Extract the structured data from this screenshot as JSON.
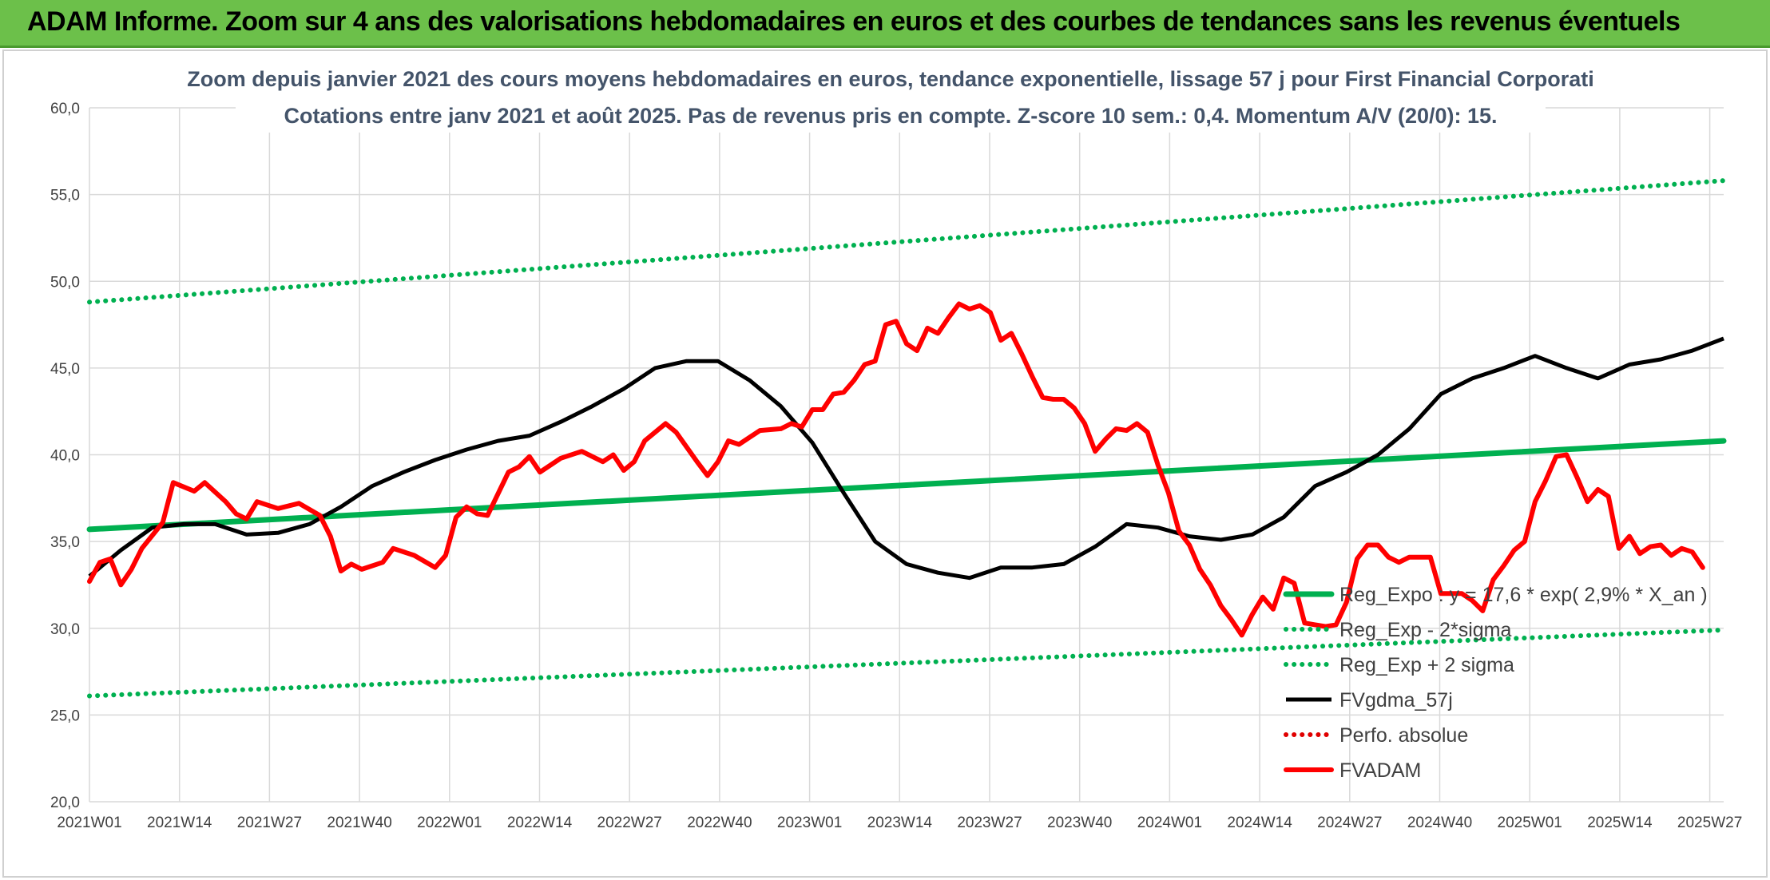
{
  "banner": {
    "text": "ADAM Informe. Zoom sur 4 ans des valorisations hebdomadaires en euros et des courbes de tendances sans les revenus éventuels",
    "color": "#6cc04a"
  },
  "chart_data": {
    "type": "line",
    "title": "Zoom depuis janvier 2021 des cours moyens hebdomadaires en euros, tendance exponentielle, lissage 57 j pour First Financial Corporati",
    "subtitle": "Cotations entre janv 2021 et août 2025. Pas de revenus pris en compte. Z-score 10 sem.: 0,4. Momentum A/V (20/0): 15.",
    "xlabel": "",
    "ylabel": "",
    "ylim": [
      20,
      60
    ],
    "yticks": [
      "20,0",
      "25,0",
      "30,0",
      "35,0",
      "40,0",
      "45,0",
      "50,0",
      "55,0",
      "60,0"
    ],
    "xtick_labels": [
      "2021W01",
      "2021W14",
      "2021W27",
      "2021W40",
      "2022W01",
      "2022W14",
      "2022W27",
      "2022W40",
      "2023W01",
      "2023W14",
      "2023W27",
      "2023W40",
      "2024W01",
      "2024W14",
      "2024W27",
      "2024W40",
      "2025W01",
      "2025W14",
      "2025W27"
    ],
    "grid": true,
    "legend_position": "bottom-right",
    "series": [
      {
        "name": "Reg_Expo : y = 17,6 * exp( 2,9% *  X_an )",
        "style": "solid-thick",
        "color": "#00b050",
        "points": [
          [
            0,
            35.7
          ],
          [
            236,
            40.8
          ]
        ]
      },
      {
        "name": "Reg_Exp - 2*sigma",
        "style": "dotted",
        "color": "#00b050",
        "points": [
          [
            0,
            26.1
          ],
          [
            236,
            29.9
          ]
        ]
      },
      {
        "name": "Reg_Exp + 2 sigma",
        "style": "dotted",
        "color": "#00b050",
        "points": [
          [
            0,
            48.8
          ],
          [
            236,
            55.8
          ]
        ]
      },
      {
        "name": "FVgdma_57j",
        "style": "solid",
        "color": "#000000",
        "points": [
          [
            0,
            33.0
          ],
          [
            6,
            34.5
          ],
          [
            12,
            35.8
          ],
          [
            18,
            36.0
          ],
          [
            24,
            36.0
          ],
          [
            30,
            35.4
          ],
          [
            36,
            35.5
          ],
          [
            42,
            36.0
          ],
          [
            48,
            37.0
          ],
          [
            54,
            38.2
          ],
          [
            60,
            39.0
          ],
          [
            66,
            39.7
          ],
          [
            72,
            40.3
          ],
          [
            78,
            40.8
          ],
          [
            84,
            41.1
          ],
          [
            90,
            41.9
          ],
          [
            96,
            42.8
          ],
          [
            102,
            43.8
          ],
          [
            108,
            45.0
          ],
          [
            114,
            45.4
          ],
          [
            120,
            45.4
          ],
          [
            126,
            44.3
          ],
          [
            132,
            42.8
          ],
          [
            138,
            40.7
          ],
          [
            144,
            37.8
          ],
          [
            150,
            35.0
          ],
          [
            156,
            33.7
          ],
          [
            162,
            33.2
          ],
          [
            168,
            32.9
          ],
          [
            174,
            33.5
          ],
          [
            180,
            33.5
          ],
          [
            186,
            33.7
          ],
          [
            192,
            34.7
          ],
          [
            198,
            36.0
          ],
          [
            204,
            35.8
          ],
          [
            210,
            35.3
          ],
          [
            216,
            35.1
          ],
          [
            222,
            35.4
          ],
          [
            228,
            36.4
          ],
          [
            234,
            38.2
          ],
          [
            240,
            39.0
          ],
          [
            246,
            40.0
          ],
          [
            252,
            41.5
          ],
          [
            258,
            43.5
          ],
          [
            264,
            44.4
          ],
          [
            270,
            45.0
          ],
          [
            276,
            45.7
          ],
          [
            282,
            45.0
          ],
          [
            288,
            44.4
          ],
          [
            294,
            45.2
          ],
          [
            300,
            45.5
          ],
          [
            306,
            46.0
          ],
          [
            312,
            46.7
          ]
        ]
      },
      {
        "name": "Perfo. absolue",
        "style": "dotted",
        "color": "#e00000",
        "points": []
      },
      {
        "name": "FVADAM",
        "style": "solid-thick",
        "color": "#ff0000",
        "points": [
          [
            0,
            32.7
          ],
          [
            2,
            33.8
          ],
          [
            4,
            34.0
          ],
          [
            6,
            32.5
          ],
          [
            8,
            33.4
          ],
          [
            10,
            34.6
          ],
          [
            14,
            36.1
          ],
          [
            16,
            38.4
          ],
          [
            20,
            37.9
          ],
          [
            22,
            38.4
          ],
          [
            26,
            37.3
          ],
          [
            28,
            36.6
          ],
          [
            30,
            36.3
          ],
          [
            32,
            37.3
          ],
          [
            36,
            36.9
          ],
          [
            40,
            37.2
          ],
          [
            44,
            36.5
          ],
          [
            46,
            35.3
          ],
          [
            48,
            33.3
          ],
          [
            50,
            33.7
          ],
          [
            52,
            33.4
          ],
          [
            56,
            33.8
          ],
          [
            58,
            34.6
          ],
          [
            62,
            34.2
          ],
          [
            66,
            33.5
          ],
          [
            68,
            34.2
          ],
          [
            70,
            36.4
          ],
          [
            72,
            37.0
          ],
          [
            74,
            36.6
          ],
          [
            76,
            36.5
          ],
          [
            80,
            39.0
          ],
          [
            82,
            39.3
          ],
          [
            84,
            39.9
          ],
          [
            86,
            39.0
          ],
          [
            90,
            39.8
          ],
          [
            94,
            40.2
          ],
          [
            96,
            39.9
          ],
          [
            98,
            39.6
          ],
          [
            100,
            40.0
          ],
          [
            102,
            39.1
          ],
          [
            104,
            39.6
          ],
          [
            106,
            40.8
          ],
          [
            110,
            41.8
          ],
          [
            112,
            41.3
          ],
          [
            116,
            39.6
          ],
          [
            118,
            38.8
          ],
          [
            120,
            39.6
          ],
          [
            122,
            40.8
          ],
          [
            124,
            40.6
          ],
          [
            126,
            41.0
          ],
          [
            128,
            41.4
          ],
          [
            132,
            41.5
          ],
          [
            134,
            41.8
          ],
          [
            136,
            41.6
          ],
          [
            138,
            42.6
          ],
          [
            140,
            42.6
          ],
          [
            142,
            43.5
          ],
          [
            144,
            43.6
          ],
          [
            146,
            44.3
          ],
          [
            148,
            45.2
          ],
          [
            150,
            45.4
          ],
          [
            152,
            47.5
          ],
          [
            154,
            47.7
          ],
          [
            156,
            46.4
          ],
          [
            158,
            46.0
          ],
          [
            160,
            47.3
          ],
          [
            162,
            47.0
          ],
          [
            164,
            47.9
          ],
          [
            166,
            48.7
          ],
          [
            168,
            48.4
          ],
          [
            170,
            48.6
          ],
          [
            172,
            48.2
          ],
          [
            174,
            46.6
          ],
          [
            176,
            47.0
          ],
          [
            178,
            45.8
          ],
          [
            180,
            44.5
          ],
          [
            182,
            43.3
          ],
          [
            184,
            43.2
          ],
          [
            186,
            43.2
          ],
          [
            188,
            42.7
          ],
          [
            190,
            41.8
          ],
          [
            192,
            40.2
          ],
          [
            194,
            40.9
          ],
          [
            196,
            41.5
          ],
          [
            198,
            41.4
          ],
          [
            200,
            41.8
          ],
          [
            202,
            41.3
          ],
          [
            204,
            39.4
          ],
          [
            206,
            37.8
          ],
          [
            208,
            35.6
          ],
          [
            210,
            34.8
          ],
          [
            212,
            33.4
          ],
          [
            214,
            32.5
          ],
          [
            216,
            31.3
          ],
          [
            218,
            30.5
          ],
          [
            220,
            29.6
          ],
          [
            222,
            30.8
          ],
          [
            224,
            31.8
          ],
          [
            226,
            31.1
          ],
          [
            228,
            32.9
          ],
          [
            230,
            32.6
          ],
          [
            232,
            30.3
          ],
          [
            234,
            30.2
          ],
          [
            236,
            30.1
          ],
          [
            238,
            30.2
          ],
          [
            240,
            31.5
          ],
          [
            242,
            34.0
          ],
          [
            244,
            34.8
          ],
          [
            246,
            34.8
          ],
          [
            248,
            34.1
          ],
          [
            250,
            33.8
          ],
          [
            252,
            34.1
          ],
          [
            256,
            34.1
          ],
          [
            258,
            32.0
          ],
          [
            260,
            32.0
          ],
          [
            262,
            32.0
          ],
          [
            264,
            31.6
          ],
          [
            266,
            31.0
          ],
          [
            268,
            32.8
          ],
          [
            270,
            33.6
          ],
          [
            272,
            34.5
          ],
          [
            274,
            35.0
          ],
          [
            276,
            37.3
          ],
          [
            278,
            38.5
          ],
          [
            280,
            39.9
          ],
          [
            282,
            40.0
          ],
          [
            284,
            38.7
          ],
          [
            286,
            37.3
          ],
          [
            288,
            38.0
          ],
          [
            290,
            37.6
          ],
          [
            292,
            34.6
          ],
          [
            294,
            35.3
          ],
          [
            296,
            34.3
          ],
          [
            298,
            34.7
          ],
          [
            300,
            34.8
          ],
          [
            302,
            34.2
          ],
          [
            304,
            34.6
          ],
          [
            306,
            34.4
          ],
          [
            308,
            33.5
          ]
        ]
      }
    ]
  }
}
